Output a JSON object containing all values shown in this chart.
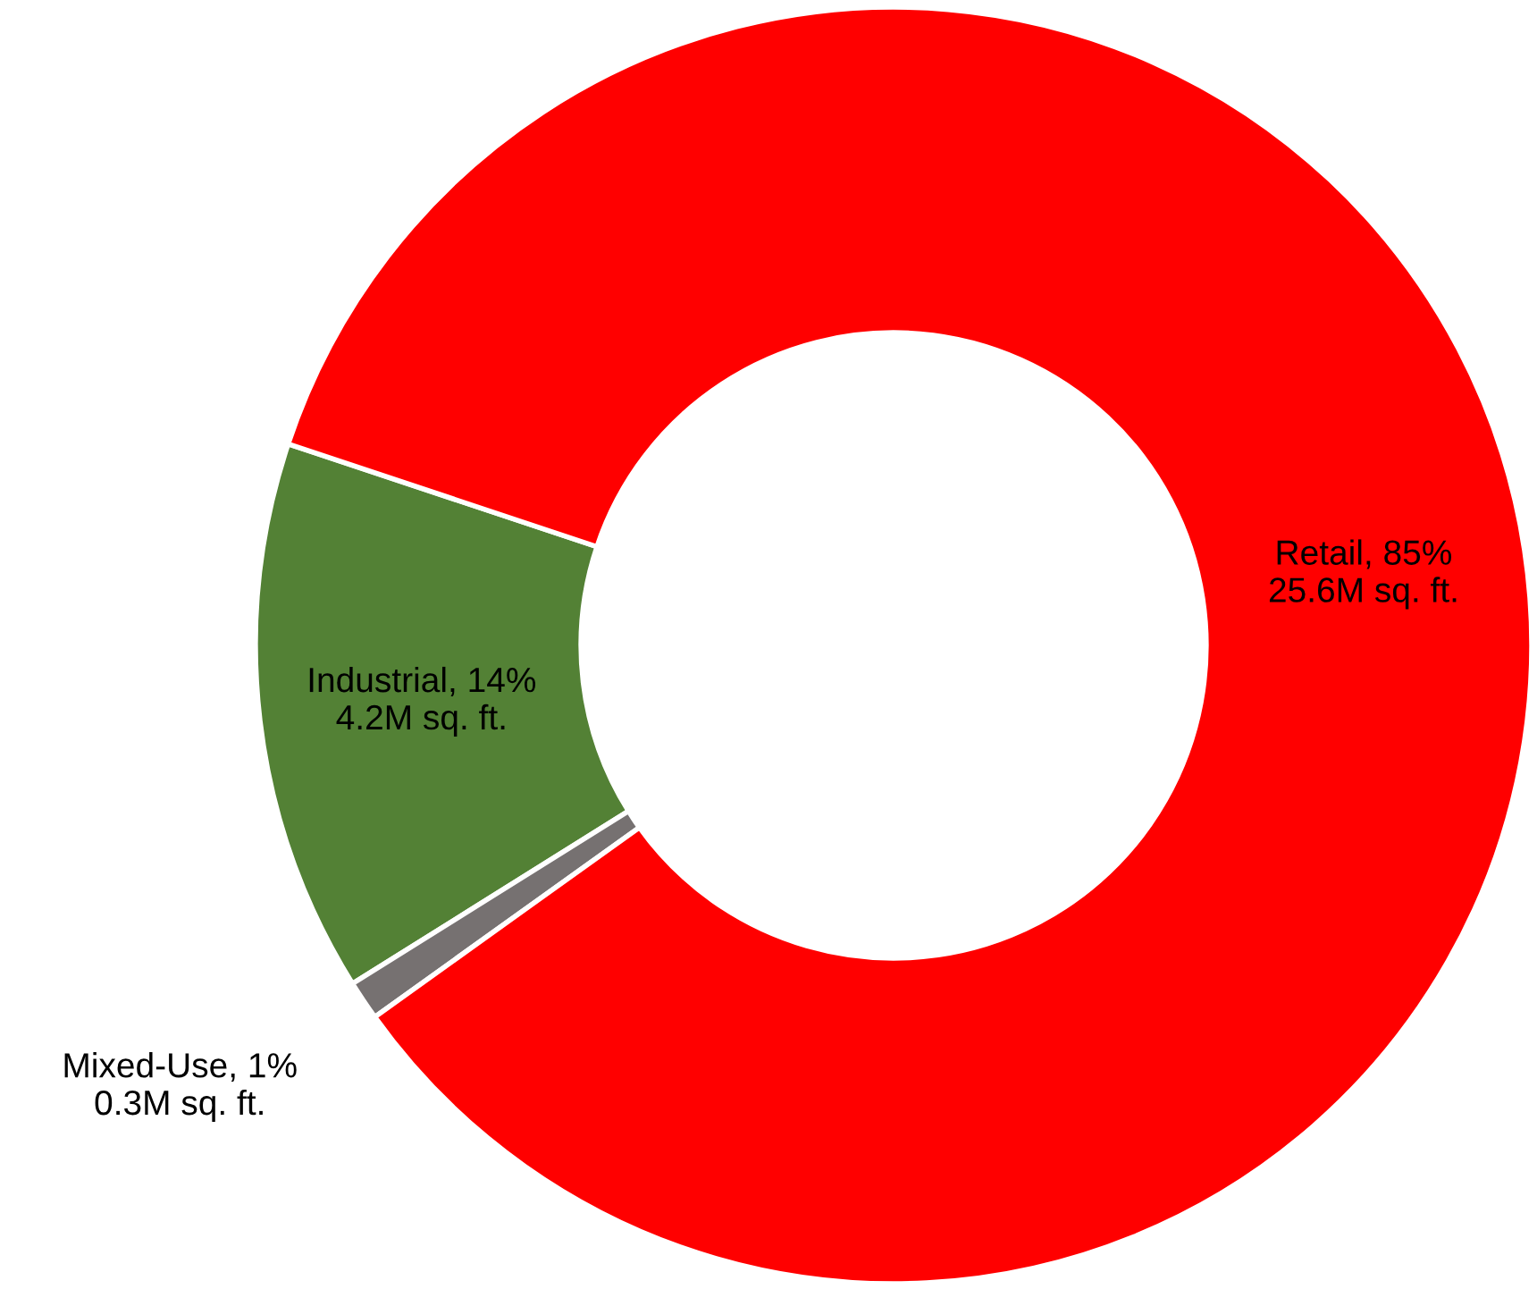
{
  "chart_data": {
    "type": "donut",
    "categories": [
      "Industrial",
      "Mixed-Use",
      "Retail"
    ],
    "values": [
      14,
      1,
      85
    ],
    "value_labels": [
      "14%\n4.2M sq. ft.",
      "1%\n0.3M sq. ft.",
      "85%\n25.6M sq. ft."
    ],
    "colors": [
      "#538135",
      "#767171",
      "#ff0000"
    ],
    "legend": false
  }
}
